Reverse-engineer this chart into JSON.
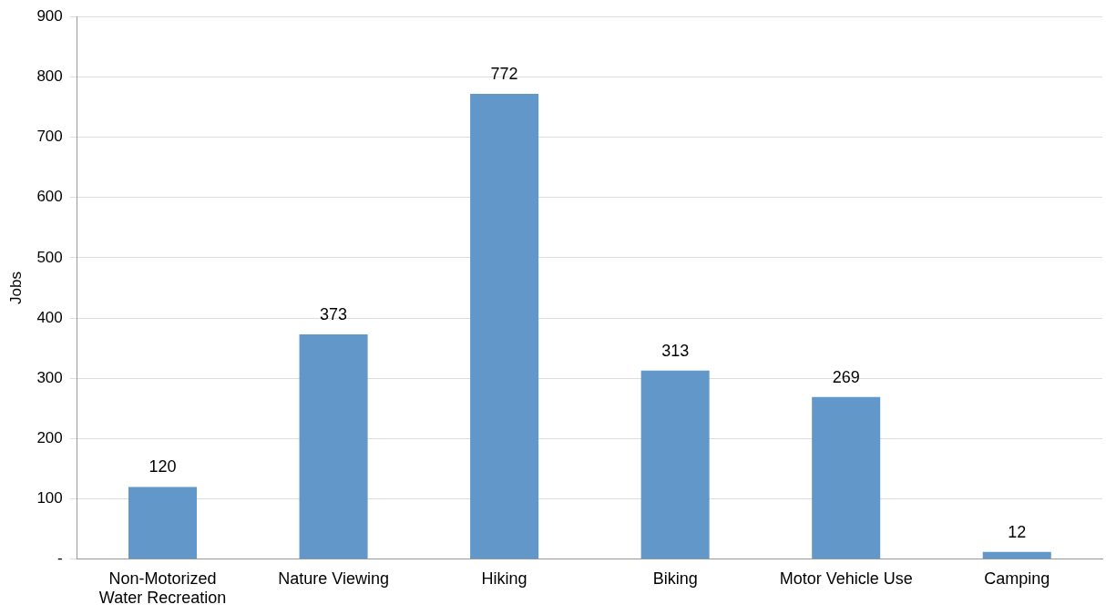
{
  "chart_data": {
    "type": "bar",
    "ylabel": "Jobs",
    "categories": [
      "Non-Motorized Water Recreation",
      "Nature Viewing",
      "Hiking",
      "Biking",
      "Motor Vehicle Use",
      "Camping"
    ],
    "values": [
      120,
      373,
      772,
      313,
      269,
      12
    ],
    "color": "#6197c9",
    "ylim": [
      0,
      900
    ],
    "yticks": [
      {
        "value": 0,
        "label": "-"
      },
      100,
      200,
      300,
      400,
      500,
      600,
      700,
      800,
      900
    ],
    "grid": "y",
    "data_labels": true
  }
}
